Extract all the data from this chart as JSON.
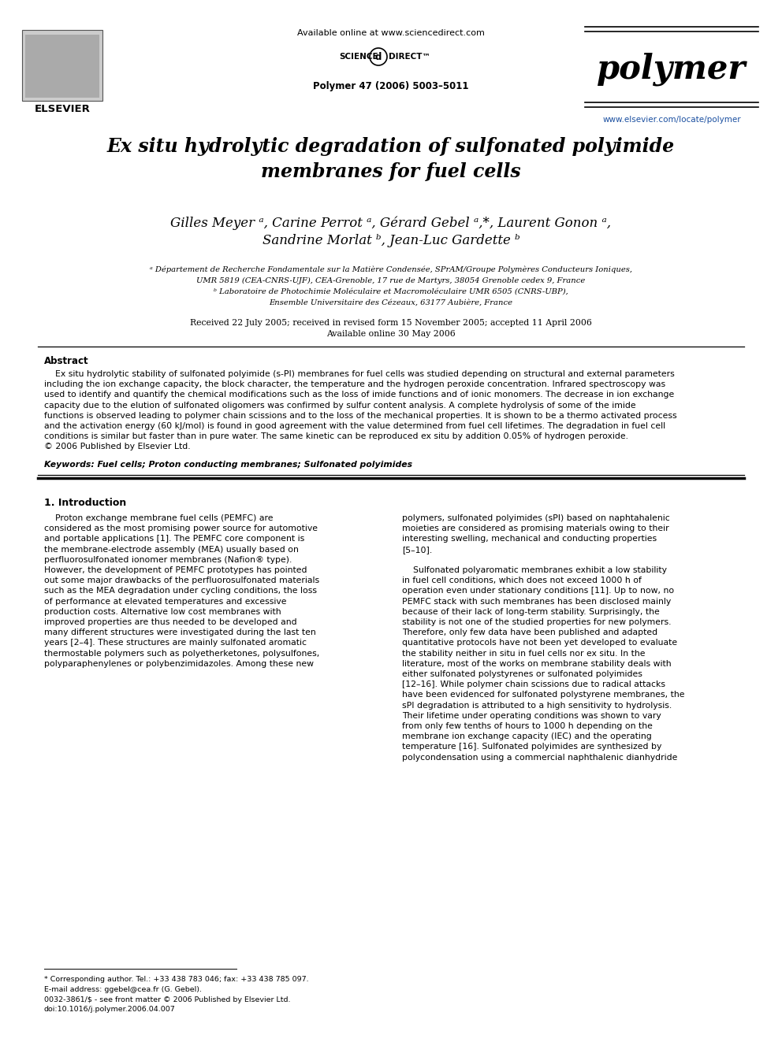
{
  "bg_color": "#ffffff",
  "title": "Ex situ hydrolytic degradation of sulfonated polyimide\nmembranes for fuel cells",
  "authors_line1": "Gilles Meyer ᵃ, Carine Perrot ᵃ, Gérard Gebel ᵃ,*, Laurent Gonon ᵃ,",
  "authors_line2": "Sandrine Morlat ᵇ, Jean-Luc Gardette ᵇ",
  "affil_a": "ᵃ Département de Recherche Fondamentale sur la Matière Condensée, SPrAM/Groupe Polymères Conducteurs Ioniques,",
  "affil_a2": "UMR 5819 (CEA-CNRS-UJF), CEA-Grenoble, 17 rue de Martyrs, 38054 Grenoble cedex 9, France",
  "affil_b": "ᵇ Laboratoire de Photochimie Moléculaire et Macromoléculaire UMR 6505 (CNRS-UBP),",
  "affil_b2": "Ensemble Universitaire des Cézeaux, 63177 Aubière, France",
  "received": "Received 22 July 2005; received in revised form 15 November 2005; accepted 11 April 2006",
  "available": "Available online 30 May 2006",
  "journal_header": "Available online at www.sciencedirect.com",
  "journal_name": "Polymer 47 (2006) 5003–5011",
  "journal_brand": "polymer",
  "journal_url": "www.elsevier.com/locate/polymer",
  "publisher": "ELSEVIER",
  "abstract_title": "Abstract",
  "keywords": "Keywords: Fuel cells; Proton conducting membranes; Sulfonated polyimides",
  "section1_title": "1. Introduction",
  "abstract_lines": [
    "    Ex situ hydrolytic stability of sulfonated polyimide (s-PI) membranes for fuel cells was studied depending on structural and external parameters",
    "including the ion exchange capacity, the block character, the temperature and the hydrogen peroxide concentration. Infrared spectroscopy was",
    "used to identify and quantify the chemical modifications such as the loss of imide functions and of ionic monomers. The decrease in ion exchange",
    "capacity due to the elution of sulfonated oligomers was confirmed by sulfur content analysis. A complete hydrolysis of some of the imide",
    "functions is observed leading to polymer chain scissions and to the loss of the mechanical properties. It is shown to be a thermo activated process",
    "and the activation energy (60 kJ/mol) is found in good agreement with the value determined from fuel cell lifetimes. The degradation in fuel cell",
    "conditions is similar but faster than in pure water. The same kinetic can be reproduced ex situ by addition 0.05% of hydrogen peroxide.",
    "© 2006 Published by Elsevier Ltd."
  ],
  "col1_lines": [
    "    Proton exchange membrane fuel cells (PEMFC) are",
    "considered as the most promising power source for automotive",
    "and portable applications [1]. The PEMFC core component is",
    "the membrane-electrode assembly (MEA) usually based on",
    "perfluorosulfonated ionomer membranes (Nafion® type).",
    "However, the development of PEMFC prototypes has pointed",
    "out some major drawbacks of the perfluorosulfonated materials",
    "such as the MEA degradation under cycling conditions, the loss",
    "of performance at elevated temperatures and excessive",
    "production costs. Alternative low cost membranes with",
    "improved properties are thus needed to be developed and",
    "many different structures were investigated during the last ten",
    "years [2–4]. These structures are mainly sulfonated aromatic",
    "thermostable polymers such as polyetherketones, polysulfones,",
    "polyparaphenylenes or polybenzimidazoles. Among these new"
  ],
  "col2_lines_p1": [
    "polymers, sulfonated polyimides (sPI) based on naphtahalenic",
    "moieties are considered as promising materials owing to their",
    "interesting swelling, mechanical and conducting properties",
    "[5–10]."
  ],
  "col2_lines_p2": [
    "    Sulfonated polyaromatic membranes exhibit a low stability",
    "in fuel cell conditions, which does not exceed 1000 h of",
    "operation even under stationary conditions [11]. Up to now, no",
    "PEMFC stack with such membranes has been disclosed mainly",
    "because of their lack of long-term stability. Surprisingly, the",
    "stability is not one of the studied properties for new polymers.",
    "Therefore, only few data have been published and adapted",
    "quantitative protocols have not been yet developed to evaluate",
    "the stability neither in situ in fuel cells nor ex situ. In the",
    "literature, most of the works on membrane stability deals with",
    "either sulfonated polystyrenes or sulfonated polyimides",
    "[12–16]. While polymer chain scissions due to radical attacks",
    "have been evidenced for sulfonated polystyrene membranes, the",
    "sPI degradation is attributed to a high sensitivity to hydrolysis.",
    "Their lifetime under operating conditions was shown to vary",
    "from only few tenths of hours to 1000 h depending on the",
    "membrane ion exchange capacity (IEC) and the operating",
    "temperature [16]. Sulfonated polyimides are synthesized by",
    "polycondensation using a commercial naphthalenic dianhydride"
  ],
  "footnote1": "* Corresponding author. Tel.: +33 438 783 046; fax: +33 438 785 097.",
  "footnote2": "E-mail address: ggebel@cea.fr (G. Gebel).",
  "footnote3": "0032-3861/$ - see front matter © 2006 Published by Elsevier Ltd.",
  "footnote4": "doi:10.1016/j.polymer.2006.04.007",
  "scidir_left": "SCIENCE",
  "scidir_right": "DIRECT™",
  "url_color": "#1a4fa0"
}
